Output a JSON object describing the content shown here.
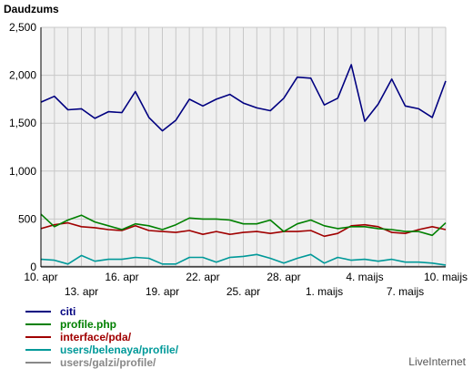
{
  "chart_data": {
    "type": "line",
    "ylabel": "Daudzums",
    "ylim": [
      0,
      2500
    ],
    "yticks": [
      0,
      500,
      1000,
      1500,
      2000,
      2500
    ],
    "ytick_labels": [
      "0",
      "500",
      "1,000",
      "1,500",
      "2,000",
      "2,500"
    ],
    "grid": true,
    "legend_placement": "bottom-left",
    "x": [
      "10. apr",
      "11. apr",
      "12. apr",
      "13. apr",
      "14. apr",
      "15. apr",
      "16. apr",
      "17. apr",
      "18. apr",
      "19. apr",
      "20. apr",
      "21. apr",
      "22. apr",
      "23. apr",
      "24. apr",
      "25. apr",
      "26. apr",
      "27. apr",
      "28. apr",
      "29. apr",
      "30. apr",
      "1. maijs",
      "2. maijs",
      "3. maijs",
      "4. maijs",
      "5. maijs",
      "6. maijs",
      "7. maijs",
      "8. maijs",
      "9. maijs",
      "10. maijs"
    ],
    "xtick_labels_upper": [
      {
        "index": 0,
        "label": "10. apr"
      },
      {
        "index": 6,
        "label": "16. apr"
      },
      {
        "index": 12,
        "label": "22. apr"
      },
      {
        "index": 18,
        "label": "28. apr"
      },
      {
        "index": 24,
        "label": "4. maijs"
      },
      {
        "index": 30,
        "label": "10. maijs"
      }
    ],
    "xtick_labels_lower": [
      {
        "index": 3,
        "label": "13. apr"
      },
      {
        "index": 9,
        "label": "19. apr"
      },
      {
        "index": 15,
        "label": "25. apr"
      },
      {
        "index": 21,
        "label": "1. maijs"
      },
      {
        "index": 27,
        "label": "7. maijs"
      }
    ],
    "series": [
      {
        "name": "citi",
        "color": "#000080",
        "values": [
          1720,
          1780,
          1640,
          1650,
          1550,
          1620,
          1610,
          1830,
          1560,
          1420,
          1530,
          1750,
          1680,
          1750,
          1800,
          1710,
          1660,
          1630,
          1760,
          1980,
          1970,
          1690,
          1760,
          2110,
          1520,
          1700,
          1960,
          1680,
          1650,
          1560,
          1940
        ]
      },
      {
        "name": "profile.php",
        "color": "#008000",
        "values": [
          550,
          420,
          490,
          540,
          470,
          430,
          390,
          450,
          430,
          390,
          440,
          510,
          500,
          500,
          490,
          450,
          450,
          490,
          370,
          450,
          490,
          430,
          400,
          420,
          420,
          400,
          390,
          370,
          370,
          330,
          460
        ]
      },
      {
        "name": "interface/pda/",
        "color": "#a00000",
        "values": [
          400,
          440,
          460,
          420,
          410,
          390,
          380,
          430,
          380,
          370,
          360,
          380,
          340,
          370,
          340,
          360,
          370,
          350,
          370,
          370,
          380,
          320,
          350,
          430,
          440,
          420,
          360,
          350,
          390,
          420,
          390
        ]
      },
      {
        "name": "users/belenaya/profile/",
        "color": "#009999",
        "values": [
          80,
          70,
          30,
          120,
          60,
          80,
          80,
          100,
          90,
          30,
          30,
          100,
          100,
          50,
          100,
          110,
          130,
          90,
          40,
          90,
          130,
          40,
          100,
          70,
          80,
          60,
          80,
          50,
          50,
          40,
          20
        ]
      },
      {
        "name": "users/galzi/profile/",
        "color": "#888888",
        "values": [
          5,
          5,
          5,
          5,
          5,
          5,
          5,
          5,
          5,
          5,
          5,
          5,
          5,
          5,
          5,
          5,
          5,
          5,
          5,
          5,
          5,
          5,
          5,
          5,
          5,
          5,
          5,
          5,
          5,
          5,
          5
        ]
      }
    ]
  },
  "footer": {
    "credit": "LiveInternet"
  }
}
